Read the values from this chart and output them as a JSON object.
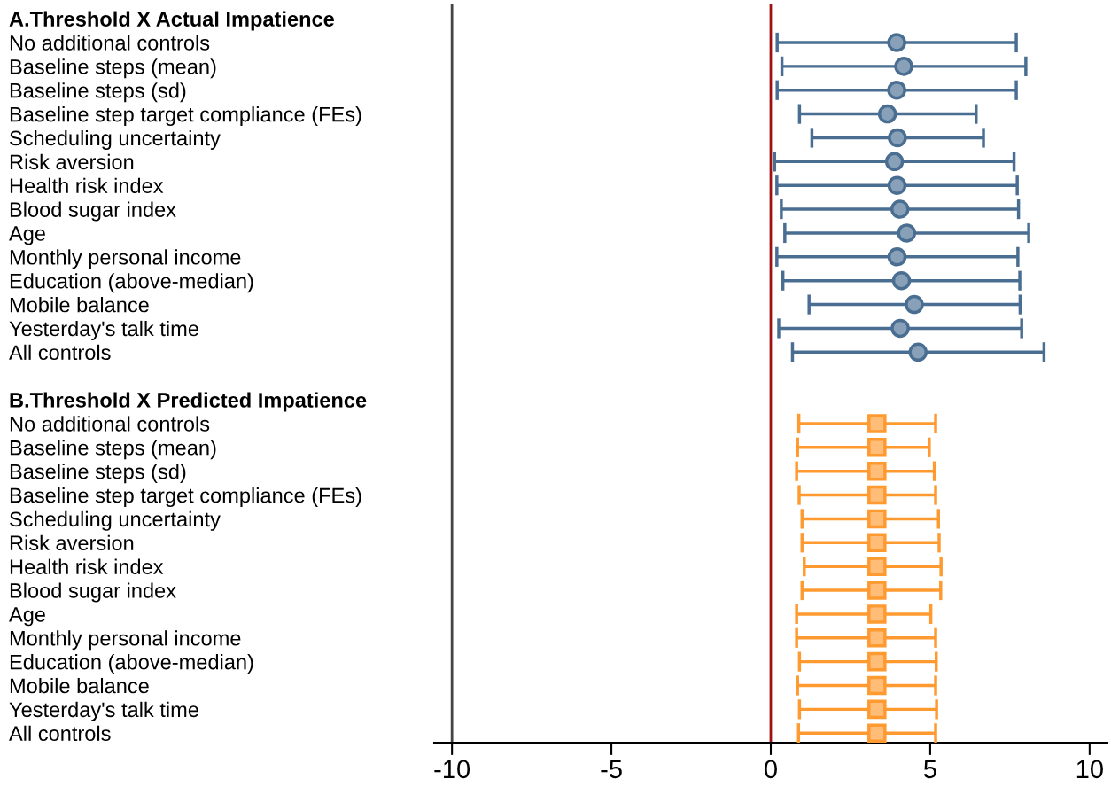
{
  "chart_data": {
    "type": "scatter",
    "orientation": "horizontal",
    "categories": [
      "A.Threshold X Actual Impatience",
      "No additional controls",
      "Baseline steps (mean)",
      "Baseline steps (sd)",
      "Baseline step target compliance (FEs)",
      "Scheduling uncertainty",
      "Risk aversion",
      "Health risk index",
      "Blood sugar index",
      "Age",
      "Monthly personal income",
      "Education (above-median)",
      "Mobile balance",
      "Yesterday's talk time",
      "All controls",
      null,
      "B.Threshold X Predicted Impatience",
      "No additional controls",
      "Baseline steps (mean)",
      "Baseline steps (sd)",
      "Baseline step target compliance (FEs)",
      "Scheduling uncertainty",
      "Risk aversion",
      "Health risk index",
      "Blood sugar index",
      "Age",
      "Monthly personal income",
      "Education (above-median)",
      "Mobile balance",
      "Yesterday's talk time",
      "All controls"
    ],
    "series": [
      {
        "color": "#4a6e92",
        "marker": "circle",
        "values": [
          null,
          3.95,
          4.17,
          3.95,
          3.66,
          3.97,
          3.88,
          3.96,
          4.05,
          4.26,
          3.96,
          4.1,
          4.5,
          4.06,
          4.62,
          null,
          null,
          null,
          null,
          null,
          null,
          null,
          null,
          null,
          null,
          null,
          null,
          null,
          null,
          null,
          null
        ],
        "errors": [
          null,
          [
            0.2,
            7.7
          ],
          [
            0.35,
            8.0
          ],
          [
            0.2,
            7.7
          ],
          [
            0.9,
            6.44
          ],
          [
            1.29,
            6.67
          ],
          [
            0.12,
            7.63
          ],
          [
            0.19,
            7.73
          ],
          [
            0.33,
            7.77
          ],
          [
            0.44,
            8.09
          ],
          [
            0.19,
            7.75
          ],
          [
            0.38,
            7.81
          ],
          [
            1.2,
            7.82
          ],
          [
            0.25,
            7.87
          ],
          [
            0.68,
            8.57
          ],
          null,
          null,
          null,
          null,
          null,
          null,
          null,
          null,
          null,
          null,
          null,
          null,
          null,
          null,
          null,
          null
        ]
      },
      {
        "color": "#ff9a30",
        "marker": "square",
        "values": [
          null,
          null,
          null,
          null,
          null,
          null,
          null,
          null,
          null,
          null,
          null,
          null,
          null,
          null,
          null,
          null,
          null,
          3.33,
          3.33,
          3.33,
          3.33,
          3.33,
          3.33,
          3.33,
          3.33,
          3.33,
          3.33,
          3.33,
          3.33,
          3.33,
          3.33
        ],
        "errors": [
          null,
          null,
          null,
          null,
          null,
          null,
          null,
          null,
          null,
          null,
          null,
          null,
          null,
          null,
          null,
          null,
          null,
          [
            0.88,
            5.17
          ],
          [
            0.84,
            4.97
          ],
          [
            0.81,
            5.13
          ],
          [
            0.89,
            5.17
          ],
          [
            0.98,
            5.26
          ],
          [
            0.98,
            5.28
          ],
          [
            1.05,
            5.34
          ],
          [
            0.98,
            5.33
          ],
          [
            0.81,
            5.02
          ],
          [
            0.81,
            5.17
          ],
          [
            0.9,
            5.19
          ],
          [
            0.84,
            5.17
          ],
          [
            0.9,
            5.2
          ],
          [
            0.87,
            5.17
          ]
        ]
      }
    ],
    "xlim": [
      -10.56,
      10.56
    ],
    "xticks": [
      -10,
      -5,
      0,
      5,
      10
    ],
    "ref_lines": [
      {
        "axis": "x",
        "value": 0,
        "color": "#a01010"
      },
      {
        "axis": "x",
        "value": -10,
        "color": "#444444"
      }
    ],
    "grid": false,
    "legend": false
  }
}
